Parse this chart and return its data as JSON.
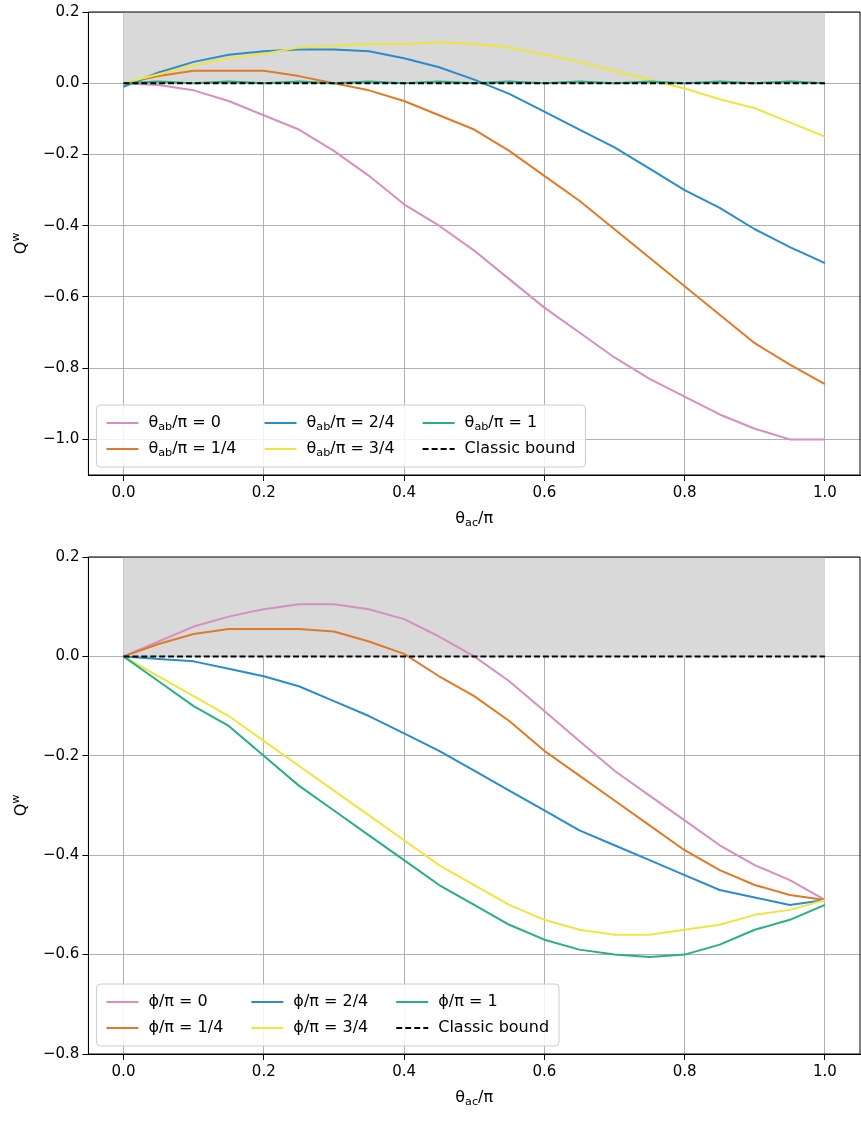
{
  "chart_data": [
    {
      "type": "line",
      "xlabel": "θ$_{ac}$/π",
      "ylabel": "Q$^{w}$",
      "xlim": [
        -0.05,
        1.05
      ],
      "ylim": [
        -1.1,
        0.2
      ],
      "xticks": [
        {
          "value": 0,
          "label": "0.0"
        },
        {
          "value": 0.2,
          "label": "0.2"
        },
        {
          "value": 0.4,
          "label": "0.4"
        },
        {
          "value": 0.6,
          "label": "0.6"
        },
        {
          "value": 0.8,
          "label": "0.8"
        },
        {
          "value": 1,
          "label": "1.0"
        }
      ],
      "yticks": [
        {
          "value": -1,
          "label": "−1.0"
        },
        {
          "value": -0.8,
          "label": "−0.8"
        },
        {
          "value": -0.6,
          "label": "−0.6"
        },
        {
          "value": -0.4,
          "label": "−0.4"
        },
        {
          "value": -0.2,
          "label": "−0.2"
        },
        {
          "value": 0,
          "label": "0.0"
        },
        {
          "value": 0.2,
          "label": "0.2"
        }
      ],
      "x": [
        0,
        0.05,
        0.1,
        0.15,
        0.2,
        0.25,
        0.3,
        0.35,
        0.4,
        0.45,
        0.5,
        0.55,
        0.6,
        0.65,
        0.7,
        0.75,
        0.8,
        0.85,
        0.9,
        0.95,
        1
      ],
      "grid": true,
      "legend": "bottom left",
      "marker": "none",
      "line_style": "solid",
      "bands": [
        {
          "axis": "y",
          "from": 0,
          "to": 0.2,
          "color": "#d9d9d9"
        }
      ],
      "series": [
        {
          "name": "θ$_{ab}$/π = 0",
          "color": "#d68fbf",
          "values": [
            0,
            -0.005,
            -0.02,
            -0.05,
            -0.09,
            -0.13,
            -0.19,
            -0.26,
            -0.34,
            -0.4,
            -0.47,
            -0.55,
            -0.63,
            -0.7,
            -0.77,
            -0.83,
            -0.88,
            -0.93,
            -0.97,
            -1,
            -1
          ]
        },
        {
          "name": "θ$_{ab}$/π = 1/4",
          "color": "#e07a28",
          "values": [
            0,
            0.02,
            0.035,
            0.035,
            0.035,
            0.02,
            0,
            -0.02,
            -0.05,
            -0.09,
            -0.13,
            -0.19,
            -0.26,
            -0.33,
            -0.41,
            -0.49,
            -0.57,
            -0.65,
            -0.73,
            -0.79,
            -0.845
          ]
        },
        {
          "name": "θ$_{ab}$/π = 2/4",
          "color": "#2a8ccb",
          "values": [
            -0.01,
            0.03,
            0.06,
            0.08,
            0.09,
            0.095,
            0.095,
            0.09,
            0.07,
            0.045,
            0.01,
            -0.03,
            -0.08,
            -0.13,
            -0.18,
            -0.24,
            -0.3,
            -0.35,
            -0.41,
            -0.46,
            -0.505
          ]
        },
        {
          "name": "θ$_{ab}$/π = 3/4",
          "color": "#f0e442",
          "values": [
            0,
            0.025,
            0.05,
            0.07,
            0.083,
            0.1,
            0.105,
            0.11,
            0.11,
            0.115,
            0.11,
            0.1,
            0.08,
            0.06,
            0.035,
            0.01,
            -0.015,
            -0.045,
            -0.07,
            -0.11,
            -0.15
          ]
        },
        {
          "name": "θ$_{ab}$/π = 1",
          "color": "#2aae85",
          "values": [
            0,
            0.005,
            0,
            0.005,
            0,
            0.005,
            0,
            0.005,
            0,
            0.005,
            0,
            0.005,
            0,
            0.005,
            0,
            0.005,
            0,
            0.005,
            0,
            0.005,
            0
          ]
        },
        {
          "name": "Classic bound",
          "type": "line",
          "color": "#000000",
          "line_style": "dashed",
          "values": [
            0,
            0,
            0,
            0,
            0,
            0,
            0,
            0,
            0,
            0,
            0,
            0,
            0,
            0,
            0,
            0,
            0,
            0,
            0,
            0,
            0
          ]
        }
      ]
    },
    {
      "type": "line",
      "xlabel": "θ$_{ac}$/π",
      "ylabel": "Q$^{w}$",
      "xlim": [
        -0.05,
        1.05
      ],
      "ylim": [
        -0.8,
        0.2
      ],
      "xticks": [
        {
          "value": 0,
          "label": "0.0"
        },
        {
          "value": 0.2,
          "label": "0.2"
        },
        {
          "value": 0.4,
          "label": "0.4"
        },
        {
          "value": 0.6,
          "label": "0.6"
        },
        {
          "value": 0.8,
          "label": "0.8"
        },
        {
          "value": 1,
          "label": "1.0"
        }
      ],
      "yticks": [
        {
          "value": -0.8,
          "label": "−0.8"
        },
        {
          "value": -0.6,
          "label": "−0.6"
        },
        {
          "value": -0.4,
          "label": "−0.4"
        },
        {
          "value": -0.2,
          "label": "−0.2"
        },
        {
          "value": 0,
          "label": "0.0"
        },
        {
          "value": 0.2,
          "label": "0.2"
        }
      ],
      "x": [
        0,
        0.05,
        0.1,
        0.15,
        0.2,
        0.25,
        0.3,
        0.35,
        0.4,
        0.45,
        0.5,
        0.55,
        0.6,
        0.65,
        0.7,
        0.75,
        0.8,
        0.85,
        0.9,
        0.95,
        1
      ],
      "grid": true,
      "legend": "bottom left",
      "marker": "none",
      "line_style": "solid",
      "bands": [
        {
          "axis": "y",
          "from": 0,
          "to": 0.2,
          "color": "#d9d9d9"
        }
      ],
      "series": [
        {
          "name": "ϕ/π = 0",
          "color": "#d68fbf",
          "values": [
            0,
            0.03,
            0.06,
            0.08,
            0.095,
            0.105,
            0.105,
            0.095,
            0.075,
            0.04,
            0,
            -0.05,
            -0.11,
            -0.17,
            -0.23,
            -0.28,
            -0.33,
            -0.38,
            -0.42,
            -0.45,
            -0.49
          ]
        },
        {
          "name": "ϕ/π = 1/4",
          "color": "#e07a28",
          "values": [
            0,
            0.025,
            0.045,
            0.055,
            0.055,
            0.055,
            0.05,
            0.03,
            0.005,
            -0.04,
            -0.08,
            -0.13,
            -0.19,
            -0.24,
            -0.29,
            -0.34,
            -0.39,
            -0.43,
            -0.46,
            -0.48,
            -0.49
          ]
        },
        {
          "name": "ϕ/π = 2/4",
          "color": "#2a8ccb",
          "values": [
            0,
            -0.005,
            -0.01,
            -0.025,
            -0.04,
            -0.06,
            -0.09,
            -0.12,
            -0.155,
            -0.19,
            -0.23,
            -0.27,
            -0.31,
            -0.35,
            -0.38,
            -0.41,
            -0.44,
            -0.47,
            -0.485,
            -0.5,
            -0.49
          ]
        },
        {
          "name": "ϕ/π = 3/4",
          "color": "#f0e442",
          "values": [
            0,
            -0.04,
            -0.08,
            -0.12,
            -0.17,
            -0.22,
            -0.27,
            -0.32,
            -0.37,
            -0.42,
            -0.46,
            -0.5,
            -0.53,
            -0.55,
            -0.56,
            -0.56,
            -0.55,
            -0.54,
            -0.52,
            -0.51,
            -0.49
          ]
        },
        {
          "name": "ϕ/π = 1",
          "color": "#2aae85",
          "values": [
            0,
            -0.05,
            -0.1,
            -0.14,
            -0.2,
            -0.26,
            -0.31,
            -0.36,
            -0.41,
            -0.46,
            -0.5,
            -0.54,
            -0.57,
            -0.59,
            -0.6,
            -0.605,
            -0.6,
            -0.58,
            -0.55,
            -0.53,
            -0.5
          ]
        },
        {
          "name": "Classic bound",
          "type": "line",
          "color": "#000000",
          "line_style": "dashed",
          "values": [
            0,
            0,
            0,
            0,
            0,
            0,
            0,
            0,
            0,
            0,
            0,
            0,
            0,
            0,
            0,
            0,
            0,
            0,
            0,
            0,
            0
          ]
        }
      ]
    }
  ]
}
